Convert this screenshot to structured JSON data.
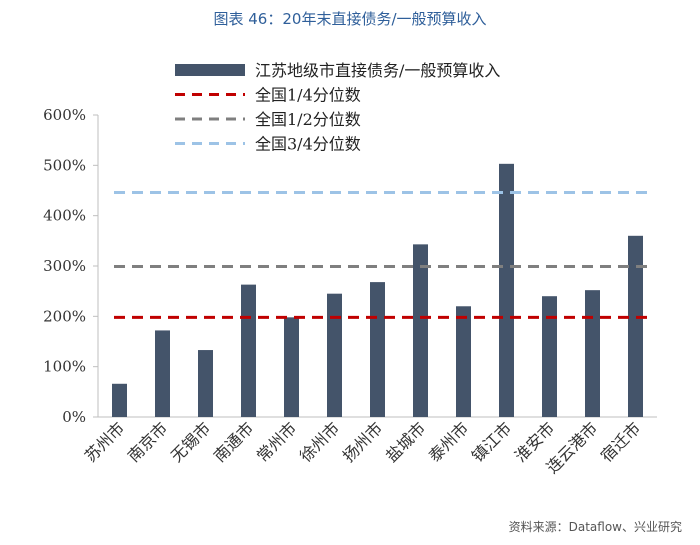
{
  "title": "图表 46：20年末直接债务/一般预算收入",
  "source": "资料来源：Dataflow、兴业研究",
  "colors": {
    "bar": "#44546a",
    "q1": "#c00000",
    "q2": "#7f7f7f",
    "q3": "#9dc3e6",
    "axis": "#bfbfbf",
    "title": "#2f5f9a"
  },
  "chart_data": {
    "type": "bar",
    "categories": [
      "苏州市",
      "南京市",
      "无锡市",
      "南通市",
      "常州市",
      "徐州市",
      "扬州市",
      "盐城市",
      "泰州市",
      "镇江市",
      "淮安市",
      "连云港市",
      "宿迁市"
    ],
    "series": [
      {
        "name": "江苏地级市直接债务/一般预算收入",
        "values": [
          0.66,
          1.72,
          1.33,
          2.63,
          1.98,
          2.45,
          2.68,
          3.43,
          2.2,
          5.03,
          2.4,
          2.52,
          3.6
        ]
      }
    ],
    "reference_lines": [
      {
        "name": "全国1/4分位数",
        "value": 1.98
      },
      {
        "name": "全国1/2分位数",
        "value": 2.99
      },
      {
        "name": "全国3/4分位数",
        "value": 4.46
      }
    ],
    "yticks": [
      "0%",
      "100%",
      "200%",
      "300%",
      "400%",
      "500%",
      "600%"
    ],
    "ylim": [
      0,
      6
    ],
    "legend_position": "top"
  }
}
